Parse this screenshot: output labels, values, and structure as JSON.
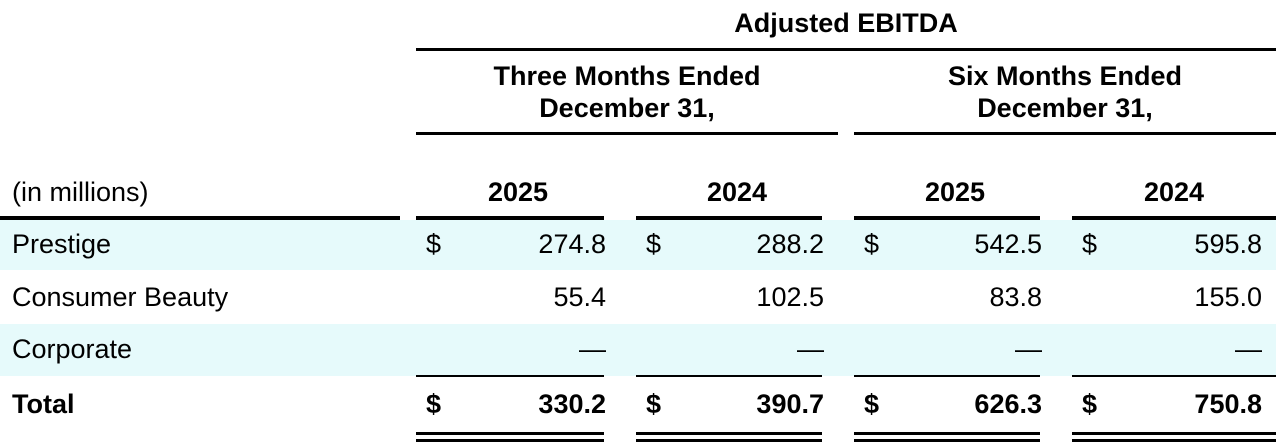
{
  "header": {
    "title": "Adjusted EBITDA"
  },
  "periods": [
    {
      "lines": [
        "Three Months Ended",
        "December 31,"
      ]
    },
    {
      "lines": [
        "Six Months Ended",
        "December 31,"
      ]
    }
  ],
  "table": {
    "unit_label": "(in millions)",
    "years": [
      "2025",
      "2024",
      "2025",
      "2024"
    ],
    "rows": [
      {
        "label": "Prestige",
        "currency": "$",
        "values": [
          "274.8",
          "288.2",
          "542.5",
          "595.8"
        ]
      },
      {
        "label": "Consumer Beauty",
        "values": [
          "55.4",
          "102.5",
          "83.8",
          "155.0"
        ]
      },
      {
        "label": "Corporate",
        "values": [
          "—",
          "—",
          "—",
          "—"
        ]
      },
      {
        "label": "Total",
        "currency": "$",
        "values": [
          "330.2",
          "390.7",
          "626.3",
          "750.8"
        ]
      }
    ]
  }
}
